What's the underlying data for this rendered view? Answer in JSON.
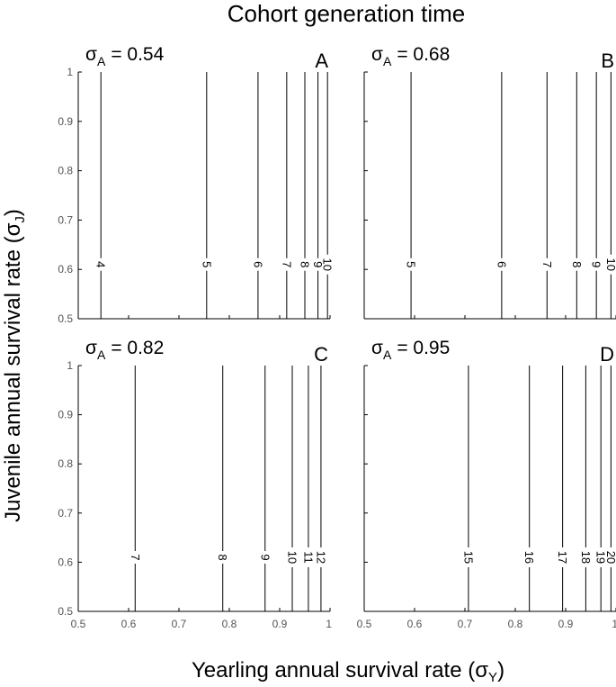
{
  "figure": {
    "title": "Cohort generation time",
    "ylabel_main": "Juvenile annual survival  rate (σ",
    "ylabel_sub": "J",
    "ylabel_close": ")",
    "xlabel_main": "Yearling annual survival rate (σ",
    "xlabel_sub": "Y",
    "xlabel_close": ")"
  },
  "chart_data": [
    {
      "type": "contour",
      "panel_letter": "A",
      "sigma_symbol": "σ",
      "sigma_sub": "A",
      "sigma_value": "= 0.54",
      "xlim": [
        0.5,
        1.0
      ],
      "ylim": [
        0.5,
        1.0
      ],
      "x_ticks": [],
      "y_ticks": [
        "0.5",
        "0.6",
        "0.7",
        "0.8",
        "0.9",
        "1"
      ],
      "label_y": 0.61,
      "contours": [
        {
          "level": "4",
          "x": 0.545
        },
        {
          "level": "5",
          "x": 0.755
        },
        {
          "level": "6",
          "x": 0.857
        },
        {
          "level": "7",
          "x": 0.914
        },
        {
          "level": "8",
          "x": 0.95
        },
        {
          "level": "9",
          "x": 0.976
        },
        {
          "level": "10",
          "x": 0.995
        }
      ]
    },
    {
      "type": "contour",
      "panel_letter": "B",
      "sigma_symbol": "σ",
      "sigma_sub": "A",
      "sigma_value": "= 0.68",
      "xlim": [
        0.5,
        1.0
      ],
      "ylim": [
        0.5,
        1.0
      ],
      "x_ticks": [],
      "y_ticks": [],
      "label_y": 0.61,
      "contours": [
        {
          "level": "5",
          "x": 0.593
        },
        {
          "level": "6",
          "x": 0.773
        },
        {
          "level": "7",
          "x": 0.863
        },
        {
          "level": "8",
          "x": 0.922
        },
        {
          "level": "9",
          "x": 0.961
        },
        {
          "level": "10",
          "x": 0.99
        }
      ]
    },
    {
      "type": "contour",
      "panel_letter": "C",
      "sigma_symbol": "σ",
      "sigma_sub": "A",
      "sigma_value": "= 0.82",
      "xlim": [
        0.5,
        1.0
      ],
      "ylim": [
        0.5,
        1.0
      ],
      "x_ticks": [
        "0.5",
        "0.6",
        "0.7",
        "0.8",
        "0.9",
        "1"
      ],
      "y_ticks": [
        "0.5",
        "0.6",
        "0.7",
        "0.8",
        "0.9",
        "1"
      ],
      "label_y": 0.61,
      "contours": [
        {
          "level": "7",
          "x": 0.613
        },
        {
          "level": "8",
          "x": 0.787
        },
        {
          "level": "9",
          "x": 0.871
        },
        {
          "level": "10",
          "x": 0.925
        },
        {
          "level": "11",
          "x": 0.957
        },
        {
          "level": "12",
          "x": 0.982
        }
      ]
    },
    {
      "type": "contour",
      "panel_letter": "D",
      "sigma_symbol": "σ",
      "sigma_sub": "A",
      "sigma_value": "= 0.95",
      "xlim": [
        0.5,
        1.0
      ],
      "ylim": [
        0.5,
        1.0
      ],
      "x_ticks": [
        "0.5",
        "0.6",
        "0.7",
        "0.8",
        "0.9",
        "1"
      ],
      "y_ticks": [],
      "label_y": 0.61,
      "contours": [
        {
          "level": "15",
          "x": 0.707
        },
        {
          "level": "16",
          "x": 0.828
        },
        {
          "level": "17",
          "x": 0.894
        },
        {
          "level": "18",
          "x": 0.94
        },
        {
          "level": "19",
          "x": 0.97
        },
        {
          "level": "20",
          "x": 0.99
        }
      ]
    }
  ]
}
